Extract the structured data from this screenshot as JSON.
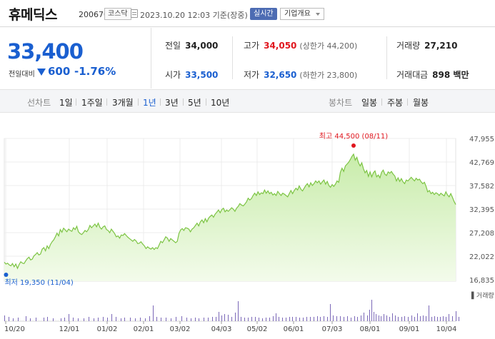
{
  "header": {
    "name": "휴메딕스",
    "code": "200670",
    "market": "코스닥",
    "time": "2023.10.20 12:03  기준(장중)",
    "realtime": "실시간",
    "company_info": "기업개요"
  },
  "price": {
    "current": "33,400",
    "compare_label": "전일대비",
    "change": "600",
    "percent": "-1.76%"
  },
  "stats": {
    "prev_label": "전일",
    "prev": "34,000",
    "high_label": "고가",
    "high": "34,050",
    "upper_limit": "(상한가 44,200)",
    "volume_label": "거래량",
    "volume": "27,210",
    "open_label": "시가",
    "open": "33,500",
    "low_label": "저가",
    "low": "32,650",
    "lower_limit": "(하한가 23,800)",
    "amount_label": "거래대금",
    "amount": "898 백만"
  },
  "period": {
    "line_label": "선차트",
    "line_buttons": [
      "1일",
      "1주일",
      "3개월",
      "1년",
      "3년",
      "5년",
      "10년"
    ],
    "active": "1년",
    "candle_label": "봉차트",
    "candle_buttons": [
      "일봉",
      "주봉",
      "월봉"
    ]
  },
  "chart_data": {
    "type": "area",
    "y_ticks": [
      "47,955",
      "42,769",
      "37,582",
      "32,395",
      "27,208",
      "22,022",
      "16,835"
    ],
    "ylim": [
      16835,
      47955
    ],
    "x_ticks": [
      "10/20",
      "12/01",
      "01/02",
      "02/01",
      "03/02",
      "04/03",
      "05/02",
      "06/01",
      "07/03",
      "08/01",
      "09/01",
      "10/04"
    ],
    "high_annotation": "최고 44,500 (08/11)",
    "low_annotation": "최저 19,350 (11/04)",
    "volume_label": "거래량",
    "colors": {
      "line": "#7cc443",
      "fill": "#dff3cf",
      "high": "#e0161e",
      "low": "#1a5fd0",
      "volume": "#7b68b8"
    },
    "prices": [
      20700,
      20300,
      20500,
      20100,
      19900,
      20400,
      19700,
      20300,
      19350,
      20200,
      20800,
      20500,
      20400,
      21000,
      21500,
      21800,
      21200,
      21400,
      22100,
      22400,
      22800,
      22300,
      22500,
      23600,
      23900,
      23200,
      24300,
      23700,
      24600,
      25200,
      25600,
      26300,
      27100,
      26500,
      27900,
      27300,
      28200,
      27800,
      27400,
      28000,
      27700,
      27500,
      28300,
      27900,
      28600,
      27400,
      27000,
      26800,
      27200,
      27700,
      27400,
      27900,
      28800,
      28300,
      28700,
      29100,
      28500,
      29300,
      28400,
      28000,
      28500,
      28700,
      27900,
      27700,
      27200,
      28000,
      27500,
      27000,
      26300,
      26500,
      26000,
      26700,
      26600,
      27000,
      26600,
      26200,
      25900,
      25600,
      25300,
      25700,
      25400,
      24800,
      24900,
      25200,
      24700,
      24300,
      23700,
      24100,
      23800,
      23600,
      23900,
      23500,
      23900,
      23700,
      24500,
      25300,
      25000,
      25600,
      26300,
      26000,
      25300,
      25900,
      25600,
      25300,
      25000,
      25300,
      27000,
      27800,
      28100,
      27700,
      28300,
      28200,
      28000,
      27400,
      28000,
      28300,
      28800,
      29300,
      28700,
      29600,
      30000,
      29400,
      30300,
      29600,
      30400,
      30800,
      31100,
      30600,
      31300,
      31700,
      32200,
      31600,
      32300,
      32600,
      31800,
      32200,
      31900,
      32300,
      32700,
      32400,
      31900,
      32600,
      33000,
      33600,
      33300,
      33100,
      33500,
      34000,
      34800,
      34400,
      34700,
      35400,
      35900,
      35400,
      36200,
      35600,
      36000,
      35800,
      36600,
      35900,
      36400,
      35800,
      36100,
      35500,
      35800,
      35400,
      36300,
      35800,
      35400,
      35900,
      35700,
      35400,
      35100,
      35800,
      36500,
      35800,
      36500,
      37000,
      36600,
      37500,
      36800,
      36400,
      37000,
      37600,
      38000,
      37300,
      38200,
      37600,
      38000,
      38600,
      38200,
      38600,
      37900,
      38400,
      38800,
      37900,
      38500,
      37600,
      37200,
      37800,
      37400,
      37900,
      38600,
      38300,
      40500,
      41400,
      40700,
      41900,
      42300,
      42700,
      43300,
      44000,
      44500,
      43200,
      43800,
      42600,
      41900,
      42600,
      41300,
      40400,
      40900,
      39600,
      40600,
      39500,
      40400,
      40800,
      39500,
      39900,
      39300,
      40500,
      41000,
      40100,
      39800,
      40600,
      40300,
      40700,
      40100,
      39700,
      38600,
      39300,
      38500,
      39100,
      38400,
      38000,
      38800,
      38600,
      39000,
      39400,
      39000,
      38600,
      39200,
      38800,
      39000,
      38400,
      38000,
      38300,
      37400,
      36200,
      36500,
      35800,
      36100,
      35600,
      36000,
      35800,
      35400,
      35900,
      35600,
      35300,
      36200,
      35500,
      35100,
      35800,
      35000,
      34100,
      33400
    ],
    "volume_bars": [
      [
        0,
        8
      ],
      [
        6,
        6
      ],
      [
        12,
        4
      ],
      [
        19,
        5
      ],
      [
        30,
        7
      ],
      [
        36,
        4
      ],
      [
        44,
        5
      ],
      [
        55,
        5
      ],
      [
        60,
        6
      ],
      [
        68,
        4
      ],
      [
        79,
        4
      ],
      [
        84,
        5
      ],
      [
        90,
        10
      ],
      [
        96,
        5
      ],
      [
        103,
        4
      ],
      [
        111,
        4
      ],
      [
        118,
        6
      ],
      [
        125,
        4
      ],
      [
        131,
        5
      ],
      [
        138,
        6
      ],
      [
        144,
        5
      ],
      [
        150,
        10
      ],
      [
        156,
        6
      ],
      [
        163,
        4
      ],
      [
        168,
        5
      ],
      [
        176,
        5
      ],
      [
        183,
        4
      ],
      [
        190,
        5
      ],
      [
        197,
        4
      ],
      [
        203,
        7
      ],
      [
        208,
        22
      ],
      [
        213,
        6
      ],
      [
        219,
        5
      ],
      [
        226,
        5
      ],
      [
        233,
        4
      ],
      [
        240,
        6
      ],
      [
        248,
        7
      ],
      [
        255,
        5
      ],
      [
        261,
        4
      ],
      [
        267,
        5
      ],
      [
        272,
        4
      ],
      [
        279,
        5
      ],
      [
        285,
        5
      ],
      [
        291,
        6
      ],
      [
        296,
        6
      ],
      [
        300,
        13
      ],
      [
        304,
        8
      ],
      [
        308,
        10
      ],
      [
        313,
        9
      ],
      [
        318,
        6
      ],
      [
        323,
        12
      ],
      [
        327,
        28
      ],
      [
        331,
        6
      ],
      [
        336,
        5
      ],
      [
        341,
        5
      ],
      [
        346,
        6
      ],
      [
        351,
        6
      ],
      [
        356,
        5
      ],
      [
        361,
        4
      ],
      [
        366,
        5
      ],
      [
        371,
        5
      ],
      [
        376,
        7
      ],
      [
        380,
        11
      ],
      [
        384,
        6
      ],
      [
        389,
        5
      ],
      [
        394,
        5
      ],
      [
        399,
        6
      ],
      [
        403,
        6
      ],
      [
        408,
        6
      ],
      [
        413,
        5
      ],
      [
        418,
        5
      ],
      [
        423,
        6
      ],
      [
        428,
        6
      ],
      [
        433,
        6
      ],
      [
        438,
        7
      ],
      [
        442,
        6
      ],
      [
        447,
        7
      ],
      [
        452,
        6
      ],
      [
        456,
        24
      ],
      [
        460,
        8
      ],
      [
        465,
        7
      ],
      [
        470,
        7
      ],
      [
        475,
        6
      ],
      [
        480,
        7
      ],
      [
        485,
        5
      ],
      [
        490,
        7
      ],
      [
        494,
        6
      ],
      [
        499,
        8
      ],
      [
        503,
        12
      ],
      [
        508,
        8
      ],
      [
        511,
        16
      ],
      [
        514,
        30
      ],
      [
        517,
        13
      ],
      [
        520,
        10
      ],
      [
        524,
        8
      ],
      [
        527,
        7
      ],
      [
        531,
        10
      ],
      [
        535,
        8
      ],
      [
        539,
        6
      ],
      [
        543,
        11
      ],
      [
        547,
        8
      ],
      [
        551,
        6
      ],
      [
        556,
        6
      ],
      [
        560,
        7
      ],
      [
        565,
        6
      ],
      [
        570,
        8
      ],
      [
        574,
        6
      ],
      [
        578,
        11
      ],
      [
        582,
        7
      ],
      [
        586,
        8
      ],
      [
        590,
        7
      ],
      [
        594,
        22
      ],
      [
        598,
        6
      ],
      [
        602,
        7
      ],
      [
        606,
        6
      ],
      [
        610,
        6
      ],
      [
        614,
        7
      ],
      [
        618,
        6
      ],
      [
        622,
        10
      ],
      [
        627,
        7
      ],
      [
        632,
        14
      ],
      [
        636,
        6
      ]
    ]
  }
}
